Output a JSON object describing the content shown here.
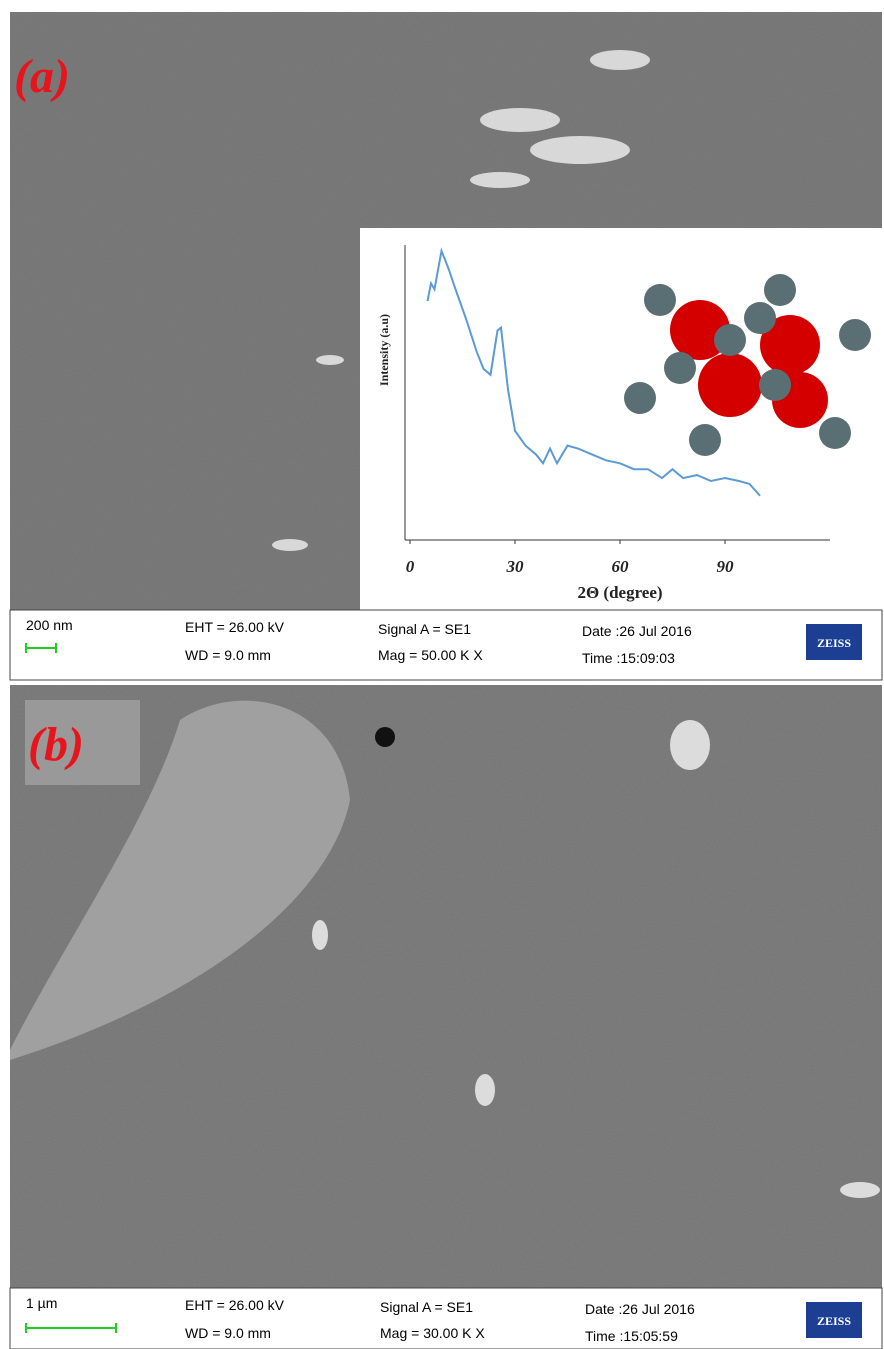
{
  "panels": [
    {
      "label": "(a)",
      "info": {
        "scale": "200 nm",
        "eht": "EHT = 26.00 kV",
        "wd": "WD = 9.0 mm",
        "signal": "Signal A = SE1",
        "mag": "Mag =  50.00 K X",
        "date": "Date :26 Jul 2016",
        "time": "Time :15:09:03",
        "brand": "ZEISS"
      }
    },
    {
      "label": "(b)",
      "info": {
        "scale": "1 µm",
        "eht": "EHT = 26.00 kV",
        "wd": "WD = 9.0 mm",
        "signal": "Signal A = SE1",
        "mag": "Mag =  30.00 K X",
        "date": "Date :26 Jul 2016",
        "time": "Time :15:05:59",
        "brand": "ZEISS"
      }
    }
  ],
  "chart_data": {
    "type": "line",
    "x_label": "2Θ (degree)",
    "y_label": "Intensity (a.u)",
    "x": [
      5,
      6,
      7,
      9,
      11,
      13,
      16,
      19,
      21,
      23,
      25,
      26,
      28,
      30,
      33,
      36,
      38,
      40,
      42,
      45,
      48,
      52,
      56,
      60,
      64,
      68,
      72,
      75,
      78,
      82,
      86,
      90,
      94,
      97,
      100
    ],
    "values": [
      81,
      87,
      85,
      98,
      92,
      85,
      75,
      64,
      58,
      56,
      71,
      72,
      51,
      37,
      32,
      29,
      26,
      31,
      26,
      32,
      31,
      29,
      27,
      26,
      24,
      24,
      21,
      24,
      21,
      22,
      20,
      21,
      20,
      19,
      15
    ],
    "color": "#5b9bd5",
    "xlim": [
      0,
      120
    ],
    "ylim": [
      0,
      100
    ],
    "xticks": [
      0,
      30,
      60,
      90
    ]
  }
}
